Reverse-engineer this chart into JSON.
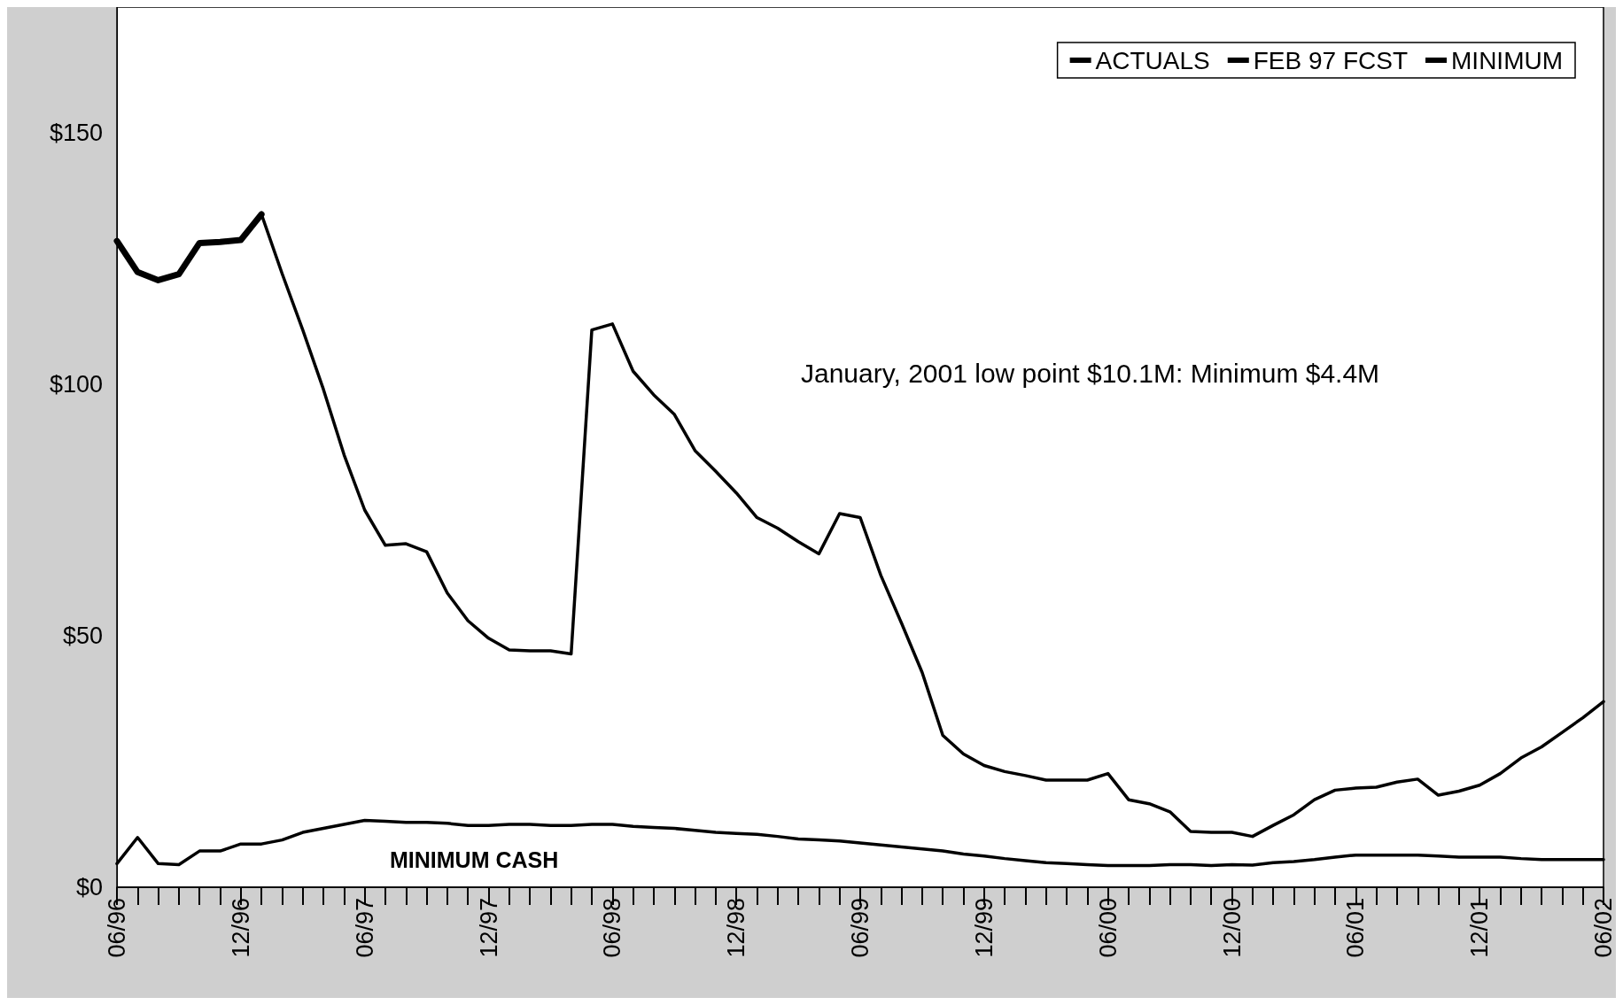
{
  "chart_data": {
    "type": "line",
    "categories": [
      "06/96",
      null,
      null,
      null,
      null,
      null,
      "12/96",
      null,
      null,
      null,
      null,
      null,
      "06/97",
      null,
      null,
      null,
      null,
      null,
      "12/97",
      null,
      null,
      null,
      null,
      null,
      "06/98",
      null,
      null,
      null,
      null,
      null,
      "12/98",
      null,
      null,
      null,
      null,
      null,
      "06/99",
      null,
      null,
      null,
      null,
      null,
      "12/99",
      null,
      null,
      null,
      null,
      null,
      "06/00",
      null,
      null,
      null,
      null,
      null,
      "12/00",
      null,
      null,
      null,
      null,
      null,
      "06/01",
      null,
      null,
      null,
      null,
      null,
      "12/01",
      null,
      null,
      null,
      null,
      null,
      "06/02"
    ],
    "series": [
      {
        "name": "ACTUALS",
        "color": "#000000",
        "values": [
          128.5,
          122.3,
          120.7,
          121.9,
          128.1,
          128.3,
          128.7,
          133.8,
          null,
          null,
          null,
          null,
          null,
          null,
          null,
          null,
          null,
          null,
          null,
          null,
          null,
          null,
          null,
          null,
          null,
          null,
          null,
          null,
          null,
          null,
          null,
          null,
          null,
          null,
          null,
          null,
          null,
          null,
          null,
          null,
          null,
          null,
          null,
          null,
          null,
          null,
          null,
          null,
          null,
          null,
          null,
          null,
          null,
          null,
          null,
          null,
          null,
          null,
          null,
          null,
          null,
          null,
          null,
          null,
          null,
          null,
          null,
          null,
          null,
          null,
          null,
          null,
          null
        ]
      },
      {
        "name": "FEB 97 FCST",
        "color": "#000000",
        "values": [
          null,
          null,
          null,
          null,
          null,
          null,
          null,
          133.8,
          122,
          110.8,
          99,
          86,
          75,
          68,
          68.3,
          66.7,
          58.5,
          53,
          49.5,
          47.2,
          47,
          47,
          46.4,
          110.8,
          112,
          102.6,
          97.9,
          94,
          86.8,
          82.7,
          78.4,
          73.5,
          71.4,
          68.7,
          66.3,
          74.3,
          73.5,
          62,
          52.5,
          42.7,
          30.2,
          26.5,
          24.2,
          23,
          22.2,
          21.3,
          21.3,
          21.3,
          22.6,
          17.4,
          16.6,
          15,
          11.1,
          10.9,
          10.9,
          10.1,
          12.3,
          14.4,
          17.4,
          19.3,
          19.7,
          19.9,
          20.9,
          21.5,
          18.3,
          19.1,
          20.3,
          22.6,
          25.7,
          27.9,
          30.8,
          33.7,
          36.9
        ]
      },
      {
        "name": "MINIMUM",
        "color": "#000000",
        "values": [
          4.7,
          9.9,
          4.7,
          4.5,
          7.2,
          7.2,
          8.6,
          8.6,
          9.4,
          10.9,
          11.7,
          12.5,
          13.3,
          13.1,
          12.9,
          12.9,
          12.7,
          12.3,
          12.3,
          12.5,
          12.5,
          12.3,
          12.3,
          12.5,
          12.5,
          12.1,
          11.9,
          11.7,
          11.3,
          10.9,
          10.7,
          10.5,
          10.1,
          9.6,
          9.4,
          9.2,
          8.8,
          8.4,
          8,
          7.6,
          7.2,
          6.6,
          6.2,
          5.7,
          5.3,
          4.9,
          4.7,
          4.5,
          4.3,
          4.3,
          4.3,
          4.5,
          4.5,
          4.3,
          4.5,
          4.4,
          4.9,
          5.1,
          5.5,
          6,
          6.4,
          6.4,
          6.4,
          6.4,
          6.2,
          6,
          6,
          6,
          5.7,
          5.5,
          5.5,
          5.5,
          5.5
        ]
      }
    ],
    "ylim": [
      0,
      175
    ],
    "yticks": [
      {
        "value": 0,
        "label": "$0"
      },
      {
        "value": 50,
        "label": "$50"
      },
      {
        "value": 100,
        "label": "$100"
      },
      {
        "value": 150,
        "label": "$150"
      }
    ],
    "annotations": [
      "January, 2001 low point $10.1M: Minimum $4.4M",
      "MINIMUM CASH"
    ],
    "legend": "top right",
    "marker": "none",
    "line_style": "solid",
    "grid": false
  }
}
